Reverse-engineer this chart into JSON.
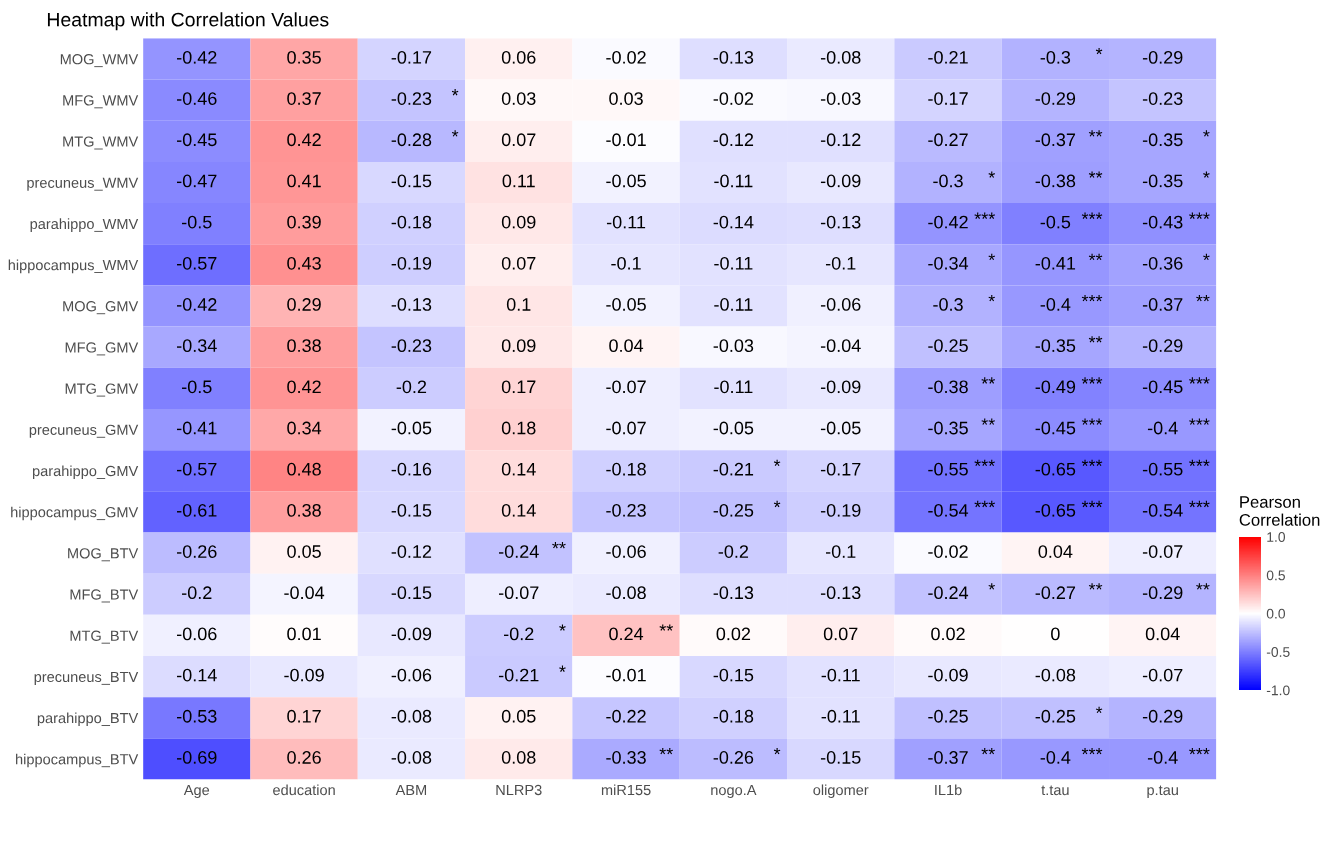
{
  "chart_data": {
    "type": "heatmap",
    "title": "Heatmap with Correlation Values",
    "clabel": "Pearson\nCorrelation",
    "categories": [
      "Age",
      "education",
      "ABM",
      "NLRP3",
      "miR155",
      "nogo.A",
      "oligomer",
      "IL1b",
      "t.tau",
      "p.tau"
    ],
    "y_categories": [
      "MOG_WMV",
      "MFG_WMV",
      "MTG_WMV",
      "precuneus_WMV",
      "parahippo_WMV",
      "hippocampus_WMV",
      "MOG_GMV",
      "MFG_GMV",
      "MTG_GMV",
      "precuneus_GMV",
      "parahippo_GMV",
      "hippocampus_GMV",
      "MOG_BTV",
      "MFG_BTV",
      "MTG_BTV",
      "precuneus_BTV",
      "parahippo_BTV",
      "hippocampus_BTV"
    ],
    "cells": [
      [
        -0.42,
        0.35,
        -0.17,
        0.06,
        -0.02,
        -0.13,
        -0.08,
        -0.21,
        -0.3,
        -0.29
      ],
      [
        -0.46,
        0.37,
        -0.23,
        0.03,
        0.03,
        -0.02,
        -0.03,
        -0.17,
        -0.29,
        -0.23
      ],
      [
        -0.45,
        0.42,
        -0.28,
        0.07,
        -0.01,
        -0.12,
        -0.12,
        -0.27,
        -0.37,
        -0.35
      ],
      [
        -0.47,
        0.41,
        -0.15,
        0.11,
        -0.05,
        -0.11,
        -0.09,
        -0.3,
        -0.38,
        -0.35
      ],
      [
        -0.5,
        0.39,
        -0.18,
        0.09,
        -0.11,
        -0.14,
        -0.13,
        -0.42,
        -0.5,
        -0.43
      ],
      [
        -0.57,
        0.43,
        -0.19,
        0.07,
        -0.1,
        -0.11,
        -0.1,
        -0.34,
        -0.41,
        -0.36
      ],
      [
        -0.42,
        0.29,
        -0.13,
        0.1,
        -0.05,
        -0.11,
        -0.06,
        -0.3,
        -0.4,
        -0.37
      ],
      [
        -0.34,
        0.38,
        -0.23,
        0.09,
        0.04,
        -0.03,
        -0.04,
        -0.25,
        -0.35,
        -0.29
      ],
      [
        -0.5,
        0.42,
        -0.2,
        0.17,
        -0.07,
        -0.11,
        -0.09,
        -0.38,
        -0.49,
        -0.45
      ],
      [
        -0.41,
        0.34,
        -0.05,
        0.18,
        -0.07,
        -0.05,
        -0.05,
        -0.35,
        -0.45,
        -0.4
      ],
      [
        -0.57,
        0.48,
        -0.16,
        0.14,
        -0.18,
        -0.21,
        -0.17,
        -0.55,
        -0.65,
        -0.55
      ],
      [
        -0.61,
        0.38,
        -0.15,
        0.14,
        -0.23,
        -0.25,
        -0.19,
        -0.54,
        -0.65,
        -0.54
      ],
      [
        -0.26,
        0.05,
        -0.12,
        -0.24,
        -0.06,
        -0.2,
        -0.1,
        -0.02,
        0.04,
        -0.07
      ],
      [
        -0.2,
        -0.04,
        -0.15,
        -0.07,
        -0.08,
        -0.13,
        -0.13,
        -0.24,
        -0.27,
        -0.29
      ],
      [
        -0.06,
        0.01,
        -0.09,
        -0.2,
        0.24,
        0.02,
        0.07,
        0.02,
        0,
        0.04
      ],
      [
        -0.14,
        -0.09,
        -0.06,
        -0.21,
        -0.01,
        -0.15,
        -0.11,
        -0.09,
        -0.08,
        -0.07
      ],
      [
        -0.53,
        0.17,
        -0.08,
        0.05,
        -0.22,
        -0.18,
        -0.11,
        -0.25,
        -0.25,
        -0.29
      ],
      [
        -0.69,
        0.26,
        -0.08,
        0.08,
        -0.33,
        -0.26,
        -0.15,
        -0.37,
        -0.4,
        -0.4
      ]
    ],
    "cell_labels": [
      [
        "-0.42",
        "0.35",
        "-0.17",
        "0.06",
        "-0.02",
        "-0.13",
        "-0.08",
        "-0.21",
        "-0.3 *",
        "-0.29"
      ],
      [
        "-0.46",
        "0.37",
        "-0.23 *",
        "0.03",
        "0.03",
        "-0.02",
        "-0.03",
        "-0.17",
        "-0.29",
        "-0.23"
      ],
      [
        "-0.45",
        "0.42",
        "-0.28 *",
        "0.07",
        "-0.01",
        "-0.12",
        "-0.12",
        "-0.27",
        "-0.37 **",
        "-0.35 *"
      ],
      [
        "-0.47",
        "0.41",
        "-0.15",
        "0.11",
        "-0.05",
        "-0.11",
        "-0.09",
        "-0.3 *",
        "-0.38 **",
        "-0.35 *"
      ],
      [
        "-0.5",
        "0.39",
        "-0.18",
        "0.09",
        "-0.11",
        "-0.14",
        "-0.13",
        "-0.42 ***",
        "-0.5 ***",
        "-0.43 ***"
      ],
      [
        "-0.57",
        "0.43",
        "-0.19",
        "0.07",
        "-0.1",
        "-0.11",
        "-0.1",
        "-0.34 *",
        "-0.41 **",
        "-0.36 *"
      ],
      [
        "-0.42",
        "0.29",
        "-0.13",
        "0.1",
        "-0.05",
        "-0.11",
        "-0.06",
        "-0.3 *",
        "-0.4 ***",
        "-0.37 **"
      ],
      [
        "-0.34",
        "0.38",
        "-0.23",
        "0.09",
        "0.04",
        "-0.03",
        "-0.04",
        "-0.25",
        "-0.35 **",
        "-0.29"
      ],
      [
        "-0.5",
        "0.42",
        "-0.2",
        "0.17",
        "-0.07",
        "-0.11",
        "-0.09",
        "-0.38 **",
        "-0.49 ***",
        "-0.45 ***"
      ],
      [
        "-0.41",
        "0.34",
        "-0.05",
        "0.18",
        "-0.07",
        "-0.05",
        "-0.05",
        "-0.35 **",
        "-0.45 ***",
        "-0.4 ***"
      ],
      [
        "-0.57",
        "0.48",
        "-0.16",
        "0.14",
        "-0.18",
        "-0.21 *",
        "-0.17",
        "-0.55 ***",
        "-0.65 ***",
        "-0.55 ***"
      ],
      [
        "-0.61",
        "0.38",
        "-0.15",
        "0.14",
        "-0.23",
        "-0.25 *",
        "-0.19",
        "-0.54 ***",
        "-0.65 ***",
        "-0.54 ***"
      ],
      [
        "-0.26",
        "0.05",
        "-0.12",
        "-0.24 **",
        "-0.06",
        "-0.2",
        "-0.1",
        "-0.02",
        "0.04",
        "-0.07"
      ],
      [
        "-0.2",
        "-0.04",
        "-0.15",
        "-0.07",
        "-0.08",
        "-0.13",
        "-0.13",
        "-0.24 *",
        "-0.27 **",
        "-0.29 **"
      ],
      [
        "-0.06",
        "0.01",
        "-0.09",
        "-0.2 *",
        "0.24 **",
        "0.02",
        "0.07",
        "0.02",
        "0",
        "0.04"
      ],
      [
        "-0.14",
        "-0.09",
        "-0.06",
        "-0.21 *",
        "-0.01",
        "-0.15",
        "-0.11",
        "-0.09",
        "-0.08",
        "-0.07"
      ],
      [
        "-0.53",
        "0.17",
        "-0.08",
        "0.05",
        "-0.22",
        "-0.18",
        "-0.11",
        "-0.25",
        "-0.25 *",
        "-0.29"
      ],
      [
        "-0.69",
        "0.26",
        "-0.08",
        "0.08",
        "-0.33 **",
        "-0.26 *",
        "-0.15",
        "-0.37 **",
        "-0.4 ***",
        "-0.4 ***"
      ]
    ],
    "colors": [
      "#0000ff",
      "#ffffff",
      "#ff0000"
    ],
    "clim": [
      -1,
      1
    ],
    "cticks": [
      {
        "value": -1,
        "label": "-1.0"
      },
      {
        "value": -0.5,
        "label": "-0.5"
      },
      {
        "value": 0,
        "label": "0.0"
      },
      {
        "value": 0.5,
        "label": "0.5"
      },
      {
        "value": 1,
        "label": "1.0"
      }
    ]
  }
}
